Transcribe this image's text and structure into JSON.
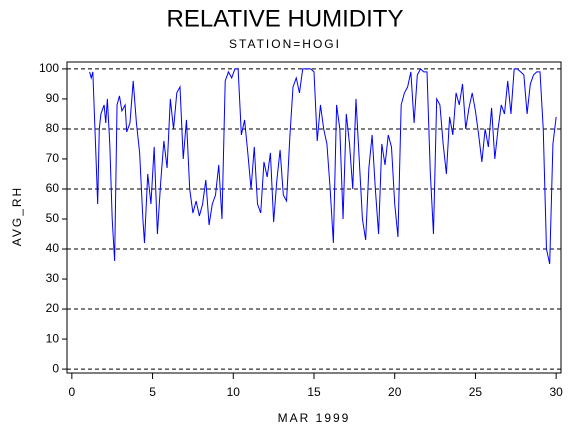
{
  "chart_data": {
    "type": "line",
    "title": "RELATIVE HUMIDITY",
    "subtitle": "STATION=HOGI",
    "ylabel": "AVG_RH",
    "xlabel": "MAR 1999",
    "x": [
      1.1,
      1.2,
      1.3,
      1.5,
      1.6,
      1.7,
      1.8,
      2.0,
      2.1,
      2.2,
      2.35,
      2.5,
      2.65,
      2.8,
      2.95,
      3.1,
      3.3,
      3.4,
      3.6,
      3.8,
      4.0,
      4.2,
      4.4,
      4.5,
      4.7,
      4.9,
      5.1,
      5.3,
      5.5,
      5.7,
      5.9,
      6.1,
      6.3,
      6.5,
      6.7,
      6.9,
      7.1,
      7.3,
      7.5,
      7.7,
      7.9,
      8.1,
      8.3,
      8.5,
      8.7,
      8.9,
      9.1,
      9.3,
      9.5,
      9.7,
      9.9,
      10.1,
      10.3,
      10.5,
      10.7,
      10.9,
      11.1,
      11.3,
      11.5,
      11.7,
      11.9,
      12.1,
      12.3,
      12.5,
      12.7,
      12.9,
      13.1,
      13.3,
      13.5,
      13.7,
      13.9,
      14.1,
      14.3,
      14.5,
      14.8,
      15.0,
      15.2,
      15.4,
      15.6,
      15.8,
      16.0,
      16.2,
      16.4,
      16.6,
      16.8,
      17.0,
      17.2,
      17.4,
      17.6,
      17.8,
      18.0,
      18.2,
      18.4,
      18.6,
      18.8,
      19.0,
      19.2,
      19.4,
      19.6,
      19.8,
      20.0,
      20.2,
      20.4,
      20.6,
      20.8,
      21.0,
      21.2,
      21.4,
      21.6,
      21.8,
      22.0,
      22.2,
      22.4,
      22.6,
      22.8,
      23.0,
      23.2,
      23.4,
      23.6,
      23.8,
      24.0,
      24.2,
      24.4,
      24.6,
      24.8,
      25.0,
      25.2,
      25.4,
      25.6,
      25.8,
      26.0,
      26.2,
      26.4,
      26.6,
      26.8,
      27.0,
      27.2,
      27.4,
      27.6,
      27.8,
      28.0,
      28.2,
      28.4,
      28.6,
      28.8,
      29.0,
      29.2,
      29.4,
      29.6,
      29.8,
      30.0
    ],
    "series": [
      {
        "name": "AVG_RH",
        "color": "#0000ff",
        "values": [
          99,
          97,
          99,
          70,
          55,
          80,
          85,
          88,
          82,
          90,
          75,
          50,
          36,
          88,
          91,
          86,
          88,
          79,
          82,
          96,
          82,
          72,
          50,
          42,
          65,
          55,
          74,
          45,
          62,
          76,
          67,
          90,
          80,
          92,
          94,
          70,
          83,
          60,
          52,
          56,
          51,
          55,
          63,
          48,
          55,
          58,
          68,
          50,
          96,
          99,
          97,
          100,
          100,
          78,
          83,
          72,
          60,
          74,
          55,
          52,
          69,
          64,
          72,
          49,
          63,
          73,
          58,
          56,
          77,
          94,
          97,
          92,
          100,
          100,
          100,
          99,
          76,
          88,
          80,
          75,
          60,
          42,
          88,
          80,
          50,
          85,
          75,
          60,
          90,
          70,
          50,
          43,
          67,
          78,
          60,
          45,
          75,
          68,
          78,
          74,
          55,
          44,
          88,
          92,
          94,
          99,
          82,
          98,
          100,
          99,
          99,
          66,
          45,
          90,
          88,
          75,
          65,
          84,
          78,
          92,
          88,
          95,
          80,
          87,
          92,
          86,
          78,
          69,
          80,
          74,
          87,
          70,
          80,
          88,
          85,
          96,
          85,
          100,
          100,
          99,
          98,
          85,
          95,
          98,
          99,
          99,
          80,
          40,
          35,
          75,
          84
        ]
      }
    ],
    "xlim": [
      -0.3,
      30.3
    ],
    "ylim": [
      -1.3,
      102.3
    ],
    "xticks": [
      0,
      5,
      10,
      15,
      20,
      25,
      30
    ],
    "yticks": [
      0,
      10,
      20,
      30,
      40,
      50,
      60,
      70,
      80,
      90,
      100
    ],
    "grid_values": [
      0,
      20,
      40,
      60,
      80,
      100
    ]
  }
}
